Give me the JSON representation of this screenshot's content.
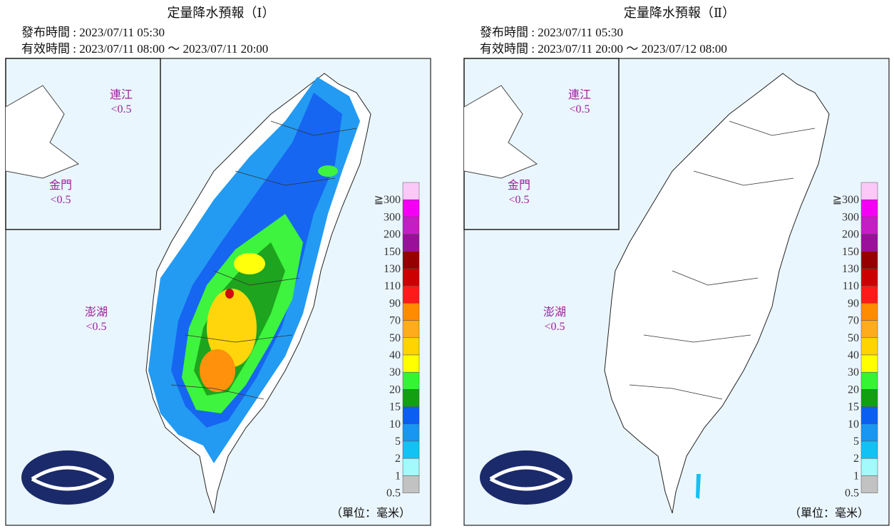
{
  "panels": [
    {
      "title": "定量降水預報（Ⅰ）",
      "issued": "發布時間 : 2023/07/11 05:30",
      "valid": "有效時間 : 2023/07/11 08:00 ～ 2023/07/11 20:00",
      "places": [
        {
          "name": "連江",
          "value": "<0.5"
        },
        {
          "name": "金門",
          "value": "<0.5"
        },
        {
          "name": "澎湖",
          "value": "<0.5"
        }
      ],
      "unit": "（單位：毫米）"
    },
    {
      "title": "定量降水預報（Ⅱ）",
      "issued": "發布時間 : 2023/07/11 05:30",
      "valid": "有效時間 : 2023/07/11 20:00 ～ 2023/07/12 08:00",
      "places": [
        {
          "name": "連江",
          "value": "<0.5"
        },
        {
          "name": "金門",
          "value": "<0.5"
        },
        {
          "name": "澎湖",
          "value": "<0.5"
        }
      ],
      "unit": "（單位：毫米）"
    }
  ],
  "legend": {
    "labels": [
      "≧300",
      "300",
      "200",
      "150",
      "130",
      "110",
      "90",
      "70",
      "50",
      "40",
      "30",
      "20",
      "15",
      "10",
      "5",
      "2",
      "1",
      "0.5"
    ],
    "colors": [
      "#fbc8f8",
      "#f400f4",
      "#c41ec4",
      "#9a109a",
      "#960000",
      "#cc0000",
      "#ff1a1a",
      "#ff8c00",
      "#ffac1c",
      "#ffd400",
      "#ffff00",
      "#34f434",
      "#12a012",
      "#0a5ef2",
      "#1896f2",
      "#12c2f4",
      "#a2fafa",
      "#c2c2c2"
    ]
  }
}
